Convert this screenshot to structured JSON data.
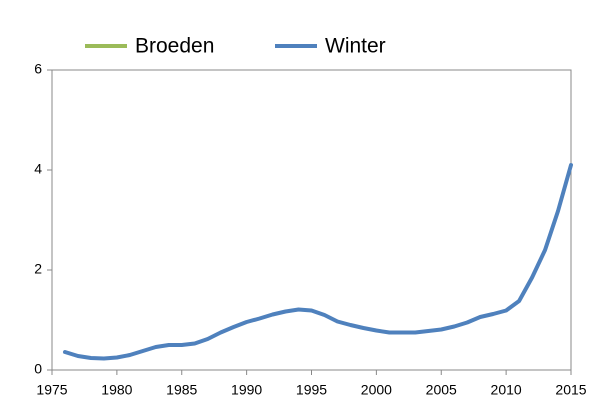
{
  "chart_data": {
    "type": "line",
    "x": [
      1976,
      1977,
      1978,
      1979,
      1980,
      1981,
      1982,
      1983,
      1984,
      1985,
      1986,
      1987,
      1988,
      1989,
      1990,
      1991,
      1992,
      1993,
      1994,
      1995,
      1996,
      1997,
      1998,
      1999,
      2000,
      2001,
      2002,
      2003,
      2004,
      2005,
      2006,
      2007,
      2008,
      2009,
      2010,
      2011,
      2012,
      2013,
      2014,
      2015
    ],
    "series": [
      {
        "name": "Broeden",
        "color": "#9bbb59",
        "values": [
          null,
          null,
          null,
          null,
          null,
          null,
          null,
          null,
          null,
          null,
          null,
          null,
          null,
          null,
          null,
          null,
          null,
          null,
          null,
          null,
          null,
          null,
          null,
          null,
          null,
          null,
          null,
          null,
          null,
          null,
          null,
          null,
          null,
          null,
          null,
          null,
          null,
          null,
          null,
          null
        ]
      },
      {
        "name": "Winter",
        "color": "#4f81bd",
        "values": [
          0.36,
          0.28,
          0.24,
          0.23,
          0.25,
          0.3,
          0.38,
          0.46,
          0.5,
          0.5,
          0.53,
          0.62,
          0.75,
          0.86,
          0.96,
          1.03,
          1.11,
          1.17,
          1.21,
          1.19,
          1.1,
          0.97,
          0.9,
          0.84,
          0.79,
          0.75,
          0.75,
          0.75,
          0.78,
          0.81,
          0.87,
          0.95,
          1.06,
          1.12,
          1.19,
          1.38,
          1.85,
          2.4,
          3.18,
          4.1
        ]
      }
    ],
    "xlim": [
      1975,
      2015
    ],
    "xticks": [
      1975,
      1980,
      1985,
      1990,
      1995,
      2000,
      2005,
      2010,
      2015
    ],
    "ylim": [
      0,
      6
    ],
    "yticks": [
      0,
      2,
      4,
      6
    ],
    "legend": "top"
  }
}
